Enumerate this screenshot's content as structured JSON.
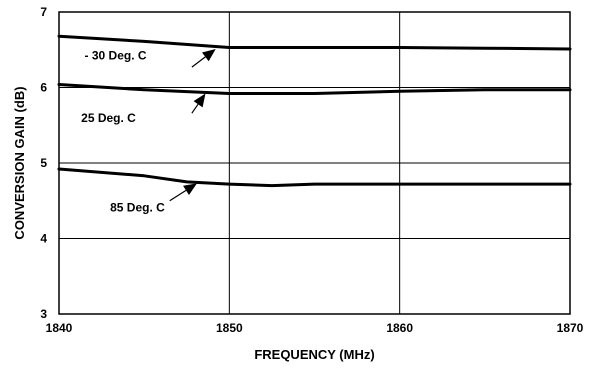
{
  "chart_data": {
    "type": "line",
    "xlabel": "FREQUENCY (MHz)",
    "ylabel": "CONVERSION GAIN (dB)",
    "xlim": [
      1840,
      1870
    ],
    "ylim": [
      3,
      7
    ],
    "x_ticks": [
      1840,
      1850,
      1860,
      1870
    ],
    "y_ticks": [
      3,
      4,
      5,
      6,
      7
    ],
    "grid": true,
    "series": [
      {
        "name": "- 30 Deg. C",
        "x": [
          1840,
          1845,
          1850,
          1855,
          1860,
          1865,
          1870
        ],
        "y": [
          6.68,
          6.61,
          6.53,
          6.53,
          6.53,
          6.52,
          6.51
        ]
      },
      {
        "name": "25 Deg. C",
        "x": [
          1840,
          1845,
          1850,
          1855,
          1860,
          1865,
          1870
        ],
        "y": [
          6.04,
          5.97,
          5.92,
          5.92,
          5.95,
          5.97,
          5.97
        ]
      },
      {
        "name": "85 Deg. C",
        "x": [
          1840,
          1845,
          1847.5,
          1850,
          1852.5,
          1855,
          1860,
          1865,
          1870
        ],
        "y": [
          4.92,
          4.83,
          4.75,
          4.72,
          4.7,
          4.72,
          4.72,
          4.72,
          4.72
        ]
      }
    ],
    "annotations": [
      {
        "text": "- 30 Deg. C",
        "label_x": 1841.5,
        "label_y": 6.37,
        "arrow_from": [
          1847.8,
          6.27
        ],
        "arrow_to": [
          1849.2,
          6.51
        ]
      },
      {
        "text": "25 Deg. C",
        "label_x": 1841.3,
        "label_y": 5.54,
        "arrow_from": [
          1847.8,
          5.66
        ],
        "arrow_to": [
          1848.6,
          5.92
        ]
      },
      {
        "text": "85 Deg. C",
        "label_x": 1843.0,
        "label_y": 4.36,
        "arrow_from": [
          1846.5,
          4.5
        ],
        "arrow_to": [
          1848.1,
          4.73
        ]
      }
    ]
  }
}
